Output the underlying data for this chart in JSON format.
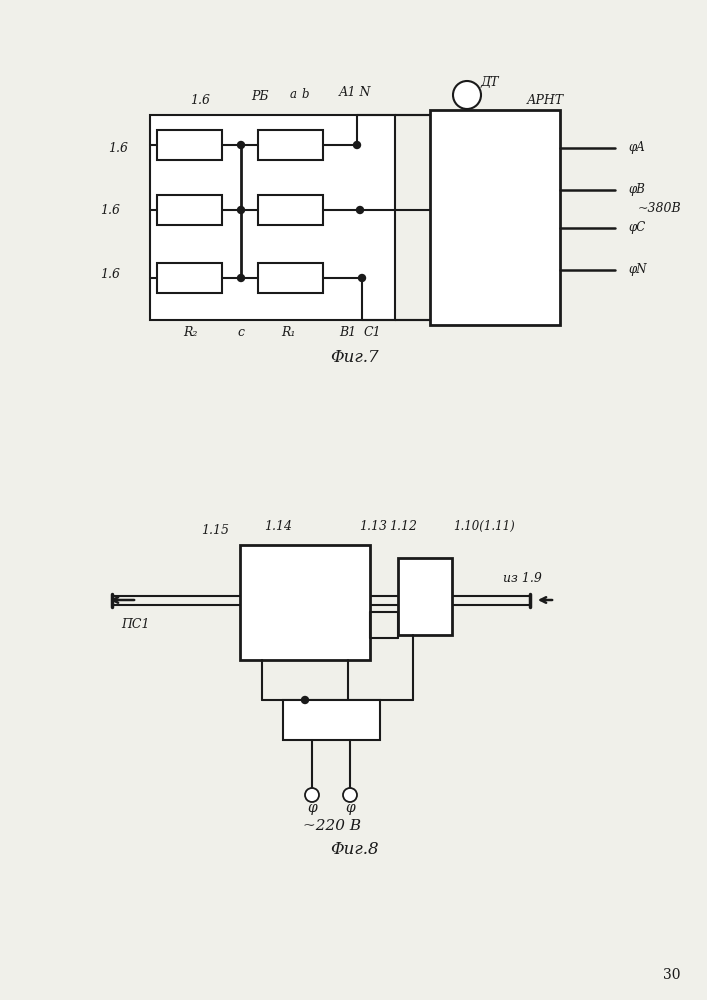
{
  "bg_color": "#f0f0ea",
  "lc": "#1a1a1a",
  "fig7_title": "Φиг.7",
  "fig8_title": "Φиг.8",
  "page_number": "30"
}
